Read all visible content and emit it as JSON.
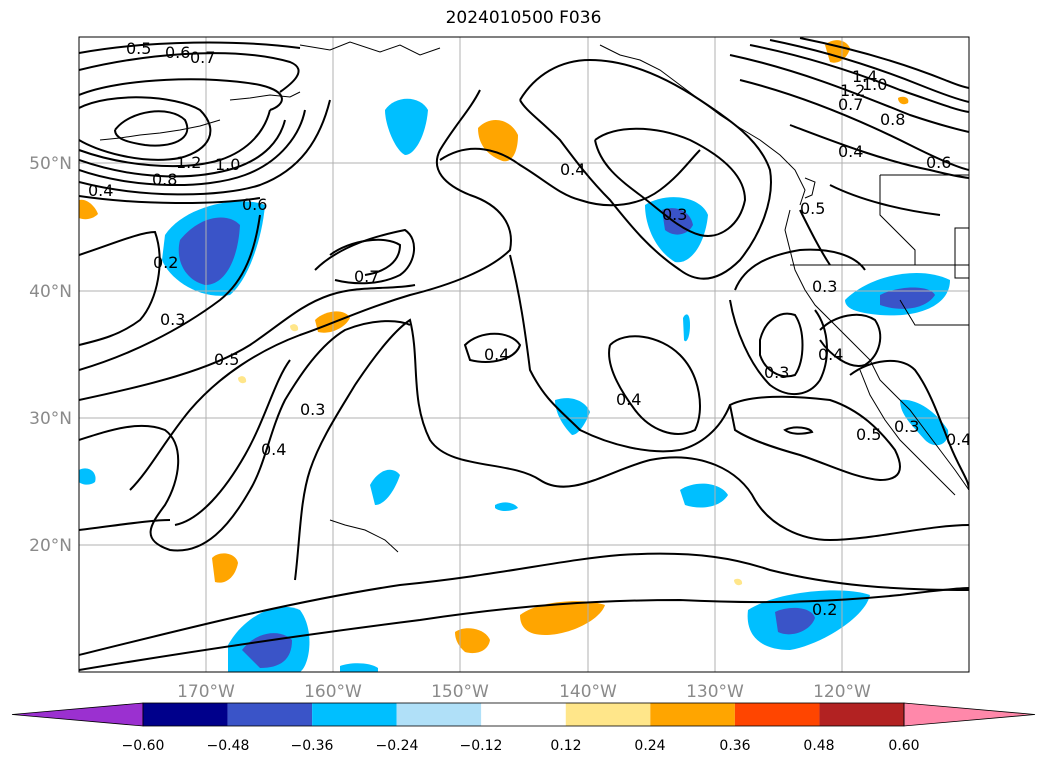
{
  "title": "2024010500 F036",
  "lat_labels": [
    "50°N",
    "40°N",
    "30°N",
    "20°N"
  ],
  "lon_labels": [
    "170°W",
    "160°W",
    "150°W",
    "140°W",
    "130°W",
    "120°W"
  ],
  "contour_labels": [
    "0.5",
    "0.6",
    "0.7",
    "1.2",
    "1.0",
    "0.8",
    "0.4",
    "0.6",
    "0.2",
    "0.3",
    "0.5",
    "0.3",
    "0.4",
    "0.7",
    "0.4",
    "0.4",
    "0.3",
    "0.4",
    "1.4",
    "1.2",
    "1.0",
    "0.7",
    "0.8",
    "0.4",
    "0.6",
    "0.5",
    "0.3",
    "0.4",
    "0.3",
    "0.5",
    "0.3",
    "0.4",
    "0.2"
  ],
  "colorbar": {
    "colors": [
      "#9b30d0",
      "#00008b",
      "#3a54c8",
      "#00bfff",
      "#b0e0f8",
      "#ffffff",
      "#ffe68a",
      "#ffa500",
      "#ff4500",
      "#b22222",
      "#ff88aa"
    ],
    "tick_labels": [
      "−0.60",
      "−0.48",
      "−0.36",
      "−0.24",
      "−0.12",
      "0.12",
      "0.24",
      "0.36",
      "0.48",
      "0.60"
    ]
  }
}
